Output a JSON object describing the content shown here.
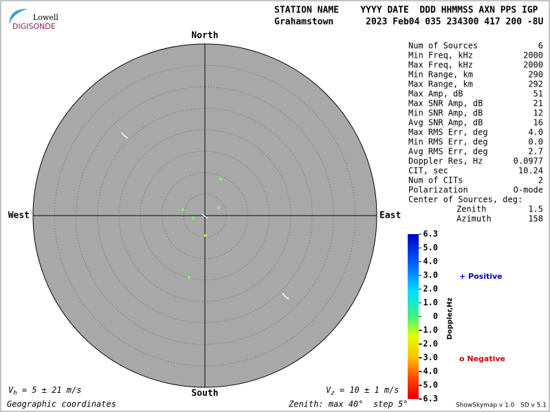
{
  "logo": {
    "top": "Lowell",
    "bottom": "DIGISONDE"
  },
  "header": {
    "row1": "STATION NAME    YYYY DATE  DDD HHMMSS AXN PPS IGP",
    "row2": "Grahamstown      2023 Feb04 035 234300 417 200 -8U"
  },
  "directions": {
    "north": "North",
    "south": "South",
    "east": "East",
    "west": "West"
  },
  "stats": [
    [
      "Num of Sources",
      "6"
    ],
    [
      "Min Freq, kHz",
      "2000"
    ],
    [
      "Max Freq, kHz",
      "2000"
    ],
    [
      "Min Range, km",
      "290"
    ],
    [
      "Max Range, km",
      "292"
    ],
    [
      "Max Amp, dB",
      "51"
    ],
    [
      "Max SNR Amp, dB",
      "21"
    ],
    [
      "Min SNR Amp, dB",
      "12"
    ],
    [
      "Avg SNR Amp, dB",
      "16"
    ],
    [
      "Max RMS Err, deg",
      "4.0"
    ],
    [
      "Min RMS Err, deg",
      "0.0"
    ],
    [
      "Avg RMS Err, deg",
      "2.7"
    ],
    [
      "Doppler Res, Hz",
      "0.0977"
    ],
    [
      "CIT, sec",
      "10.24"
    ],
    [
      "Num of CITs",
      "2"
    ],
    [
      "Polarization",
      "O-mode"
    ]
  ],
  "center": {
    "title": "Center of Sources, deg:",
    "rows": [
      [
        "Zenith",
        "1.5"
      ],
      [
        "Azimuth",
        "158"
      ]
    ]
  },
  "colorbar": {
    "title": "Doppler,Hz",
    "labels": [
      "6.3",
      "5.0",
      "4.0",
      "3.0",
      "2.0",
      "1.0",
      "0",
      "-1.0",
      "-2.0",
      "-3.0",
      "-4.0",
      "-5.0",
      "-6.3"
    ]
  },
  "legend": {
    "positive": "+ Positive",
    "negative": "o Negative"
  },
  "footer": {
    "vh": [
      "V",
      "h",
      " = 5 ± 21 m/s"
    ],
    "vz": [
      "V",
      "z",
      " = 10 ± 1 m/s"
    ],
    "coords": "Geographic coordinates",
    "zenith": "Zenith: max 40°  step 5°",
    "version": "ShowSkymap v 1.0   SD v 5.1"
  }
}
